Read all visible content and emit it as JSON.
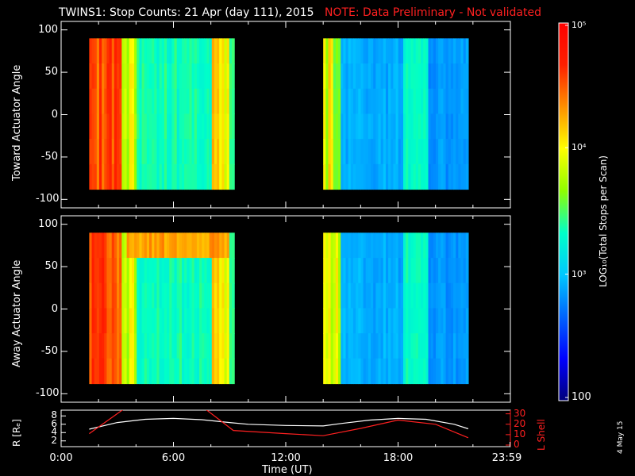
{
  "title": {
    "main": "TWINS1: Stop Counts: 21 Apr (day 111), 2015",
    "note": "NOTE: Data Preliminary - Not validated"
  },
  "side_date": "4 May 15",
  "chart_data": [
    {
      "type": "heatmap",
      "panel": "toward",
      "ylabel": "Toward Actuator Angle",
      "ylim": [
        -110,
        110
      ],
      "yticks": [
        "100",
        "50",
        "0",
        "-50",
        "-100"
      ],
      "ytick_values": [
        100,
        50,
        0,
        -50,
        -100
      ],
      "xlim_hours": [
        0,
        24
      ],
      "data_blocks_hours": [
        [
          1.5,
          9.25
        ],
        [
          14.0,
          21.75
        ]
      ],
      "data_angle_range": [
        -88,
        90
      ],
      "z_description": "LOG10(Total Stops per Scan)",
      "colors": {
        "high_band": "#ff6a1e",
        "mid": "#27b6f0",
        "low": "#1e68f0"
      }
    },
    {
      "type": "heatmap",
      "panel": "away",
      "ylabel": "Away Actuator Angle",
      "ylim": [
        -110,
        110
      ],
      "yticks": [
        "100",
        "50",
        "0",
        "-50",
        "-100"
      ],
      "ytick_values": [
        100,
        50,
        0,
        -50,
        -100
      ],
      "xlim_hours": [
        0,
        24
      ],
      "data_blocks_hours": [
        [
          1.5,
          9.25
        ],
        [
          14.0,
          21.75
        ]
      ],
      "data_angle_range": [
        -88,
        90
      ]
    },
    {
      "type": "line",
      "panel": "orbit",
      "ylabel_left": "R [Rₑ]",
      "ylabel_right": "L Shell",
      "left_ticks": [
        "8",
        "6",
        "4",
        "2"
      ],
      "left_tick_values": [
        8,
        6,
        4,
        2
      ],
      "right_ticks": [
        "30",
        "20",
        "10",
        "0"
      ],
      "right_tick_values": [
        30,
        20,
        10,
        0
      ],
      "xlabel": "Time (UT)",
      "xticks": [
        "0:00",
        "6:00",
        "12:00",
        "18:00",
        "23:59"
      ],
      "xtick_hours": [
        0,
        6,
        12,
        18,
        23.98
      ],
      "series": [
        {
          "name": "R",
          "color": "#ffffff",
          "x": [
            1.5,
            3,
            4.5,
            6,
            7.5,
            9,
            10,
            12,
            14,
            15,
            16.5,
            18,
            19.5,
            21,
            21.75
          ],
          "y": [
            4.8,
            6.4,
            7.2,
            7.4,
            7.1,
            6.4,
            6.0,
            5.7,
            5.6,
            6.2,
            7.0,
            7.4,
            7.2,
            6.0,
            4.9
          ]
        },
        {
          "name": "L Shell",
          "color": "#ff2020",
          "x": [
            1.5,
            3.3,
            7.75,
            9.2,
            12,
            14,
            16,
            18,
            20,
            21.75
          ],
          "y": [
            11,
            34,
            34,
            14,
            11,
            9,
            16,
            24,
            20,
            7
          ]
        }
      ]
    }
  ],
  "colorbar": {
    "label": "LOG₁₀(Total Stops per Scan)",
    "tick_top": "10⁵",
    "tick_mid": "10⁴",
    "tick_low": "10³",
    "tick_bottom": "100",
    "stops": [
      "#00007a",
      "#0000ff",
      "#0064ff",
      "#00c8ff",
      "#00ffc8",
      "#90ff00",
      "#ffff00",
      "#ff9000",
      "#ff2000",
      "#ff0000"
    ]
  }
}
